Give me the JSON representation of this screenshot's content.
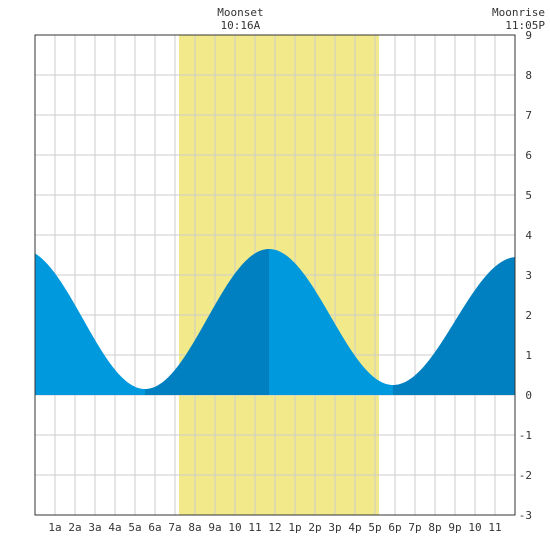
{
  "chart_data": {
    "type": "area",
    "title": "",
    "xlabel": "",
    "ylabel": "",
    "xlim": [
      0,
      24
    ],
    "ylim": [
      -3,
      9
    ],
    "grid": true,
    "x_tick_labels": [
      {
        "x": 1,
        "label": "1a"
      },
      {
        "x": 2,
        "label": "2a"
      },
      {
        "x": 3,
        "label": "3a"
      },
      {
        "x": 4,
        "label": "4a"
      },
      {
        "x": 5,
        "label": "5a"
      },
      {
        "x": 6,
        "label": "6a"
      },
      {
        "x": 7,
        "label": "7a"
      },
      {
        "x": 8,
        "label": "8a"
      },
      {
        "x": 9,
        "label": "9a"
      },
      {
        "x": 10,
        "label": "10"
      },
      {
        "x": 11,
        "label": "11"
      },
      {
        "x": 12,
        "label": "12"
      },
      {
        "x": 13,
        "label": "1p"
      },
      {
        "x": 14,
        "label": "2p"
      },
      {
        "x": 15,
        "label": "3p"
      },
      {
        "x": 16,
        "label": "4p"
      },
      {
        "x": 17,
        "label": "5p"
      },
      {
        "x": 18,
        "label": "6p"
      },
      {
        "x": 19,
        "label": "7p"
      },
      {
        "x": 20,
        "label": "8p"
      },
      {
        "x": 21,
        "label": "9p"
      },
      {
        "x": 22,
        "label": "10"
      },
      {
        "x": 23,
        "label": "11"
      }
    ],
    "y_ticks": [
      -3,
      -2,
      -1,
      0,
      1,
      2,
      3,
      4,
      5,
      6,
      7,
      8,
      9
    ],
    "daylight": {
      "start": 7.2,
      "end": 17.2
    },
    "tide_extremes": [
      {
        "x": 5.5,
        "y": 0.15,
        "kind": "low"
      },
      {
        "x": 11.7,
        "y": 3.65,
        "kind": "high"
      },
      {
        "x": 17.9,
        "y": 0.25,
        "kind": "low"
      },
      {
        "x": 24.1,
        "y": 3.45,
        "kind": "high"
      }
    ],
    "annotations": [
      {
        "x": 10.27,
        "title": "Moonset",
        "time": "10:16A",
        "anchor": "middle"
      },
      {
        "x": 24,
        "title": "Moonrise",
        "time": "11:05P",
        "anchor": "end"
      }
    ],
    "colors": {
      "daylight": "#f2ea8a",
      "tide_rising": "#0080c0",
      "tide_falling": "#0099dd",
      "grid": "#cccccc",
      "axis": "#333333"
    }
  }
}
